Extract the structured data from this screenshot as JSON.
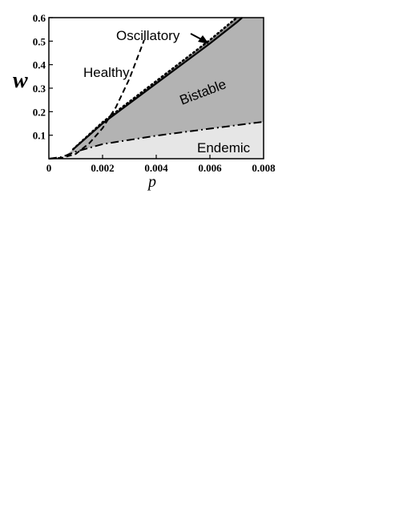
{
  "chart_data": {
    "type": "area",
    "xlabel": "p",
    "ylabel": "w",
    "xlim": [
      0,
      0.008
    ],
    "ylim": [
      0,
      0.6
    ],
    "x_ticks": [
      "0",
      "0.002",
      "0.004",
      "0.006",
      "0.008"
    ],
    "y_ticks": [
      "0.1",
      "0.2",
      "0.3",
      "0.4",
      "0.5",
      "0.6"
    ],
    "region_labels": {
      "healthy": "Healthy",
      "oscillatory": "Oscillatory",
      "bistable": "Bistable",
      "endemic": "Endemic"
    },
    "region_colors": {
      "bistable": "#b3b3b3",
      "endemic": "#e6e6e6",
      "oscillatory": "#8c8c8c"
    },
    "series": [
      {
        "style": "dashed",
        "x": [
          0,
          0.0005,
          0.001,
          0.0015,
          0.002,
          0.0025,
          0.003,
          0.0035,
          0.00355
        ],
        "y": [
          0,
          0.004,
          0.02,
          0.065,
          0.13,
          0.22,
          0.34,
          0.49,
          0.505
        ]
      },
      {
        "style": "solid",
        "x": [
          0.0009,
          0.002,
          0.004,
          0.006,
          0.007,
          0.0072
        ],
        "y": [
          0.04,
          0.15,
          0.32,
          0.49,
          0.58,
          0.6
        ]
      },
      {
        "style": "dotted",
        "x": [
          0.0009,
          0.002,
          0.004,
          0.006,
          0.007
        ],
        "y": [
          0.04,
          0.155,
          0.33,
          0.505,
          0.6
        ]
      },
      {
        "style": "dash-dot",
        "x": [
          0,
          0.0005,
          0.001,
          0.002,
          0.004,
          0.006,
          0.008
        ],
        "y": [
          0,
          0.008,
          0.03,
          0.062,
          0.098,
          0.128,
          0.157
        ]
      }
    ]
  }
}
